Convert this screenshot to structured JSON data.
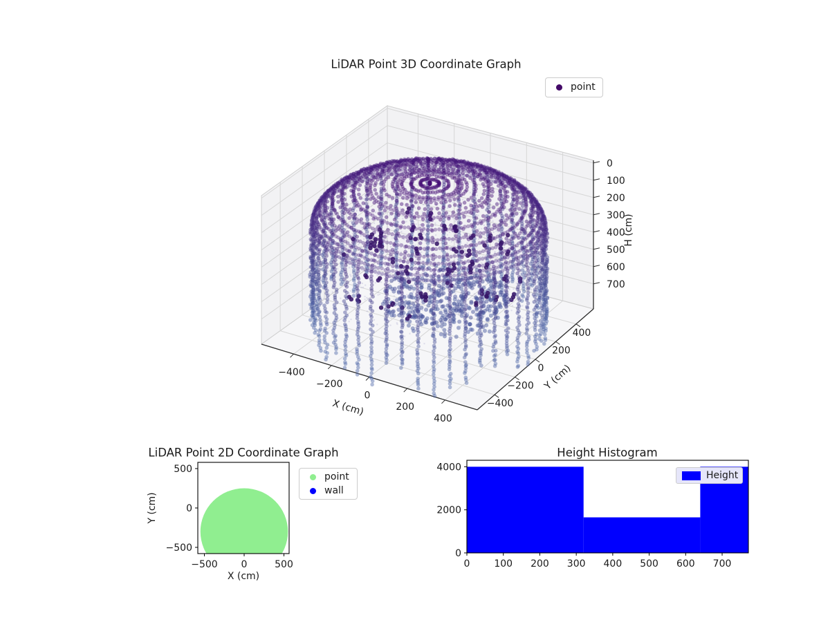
{
  "background": "#ffffff",
  "text_color": "#1a1a1a",
  "chart_data": [
    {
      "id": "lidar-3d",
      "type": "scatter3d",
      "title": "LiDAR Point 3D Coordinate Graph",
      "xlabel": "X (cm)",
      "ylabel": "Y (cm)",
      "zlabel": "H (cm)",
      "xtick_values": [
        -400,
        -200,
        0,
        200,
        400
      ],
      "xtick_labels": [
        "−400",
        "−200",
        "0",
        "200",
        "400"
      ],
      "ytick_values": [
        -400,
        -200,
        0,
        200,
        400
      ],
      "ytick_labels": [
        "−400",
        "−200",
        "0",
        "200",
        "400"
      ],
      "ztick_values": [
        0,
        100,
        200,
        300,
        400,
        500,
        600,
        700
      ],
      "ztick_labels": [
        "0",
        "100",
        "200",
        "300",
        "400",
        "500",
        "600",
        "700"
      ],
      "xlim": [
        -570,
        570
      ],
      "ylim": [
        -570,
        570
      ],
      "zlim": [
        -15,
        845
      ],
      "grid": true,
      "legend": [
        {
          "label": "point",
          "color": "#440a68"
        }
      ],
      "pane_color": "#f2f2f4",
      "grid_color": "#d6d6d6",
      "point_cloud": {
        "seed": 11,
        "columns": 46,
        "points_per_column": 58,
        "wall_radius_cm": 550,
        "dome_height_cm": 260,
        "wall_bottom_cm": 800,
        "dot_radius_px": 2.8,
        "alpha": 0.45,
        "colormap_stops": [
          "#450d76",
          "#46408d",
          "#5069a8"
        ],
        "dome_ring_step_cm": 26,
        "interior_dark": {
          "runs": 60,
          "color": "#351566",
          "alpha": 0.88,
          "h_min": 320,
          "h_max": 580,
          "dot_radius_px": 3.2
        },
        "floor_patch": {
          "count": 420,
          "radius_cm": 300,
          "center_x_cm": 90,
          "h_center_cm": 640,
          "h_spread_cm": 70,
          "alpha": 0.5
        },
        "haze": {
          "count": 900,
          "alpha": 0.3,
          "color": "#aaa6ce",
          "h_min": 250,
          "h_max": 650,
          "dot_radius_px": 1.2
        }
      }
    },
    {
      "id": "lidar-2d",
      "type": "scatter",
      "title": "LiDAR Point 2D Coordinate Graph",
      "xlabel": "X (cm)",
      "ylabel": "Y (cm)",
      "xtick_values": [
        -500,
        0,
        500
      ],
      "xtick_labels": [
        "−500",
        "0",
        "500"
      ],
      "ytick_values": [
        500,
        0,
        -500
      ],
      "ytick_labels": [
        "500",
        "0",
        "−500"
      ],
      "xlim": [
        -583,
        566
      ],
      "ylim": [
        -579,
        579
      ],
      "legend": [
        {
          "label": "point",
          "color": "#90ee90"
        },
        {
          "label": "wall",
          "color": "#0000ff"
        }
      ],
      "point_region": {
        "shape": "disc",
        "center_cm": [
          0,
          -300
        ],
        "radius_cm": 550,
        "color": "#90ee90"
      }
    },
    {
      "id": "height-histogram",
      "type": "bar",
      "title": "Height Histogram",
      "xtick_values": [
        0,
        100,
        200,
        300,
        400,
        500,
        600,
        700
      ],
      "xtick_labels": [
        "0",
        "100",
        "200",
        "300",
        "400",
        "500",
        "600",
        "700"
      ],
      "ytick_values": [
        0,
        2000,
        4000
      ],
      "ytick_labels": [
        "0",
        "2000",
        "4000"
      ],
      "xlim": [
        0,
        772
      ],
      "ylim": [
        0,
        4300
      ],
      "bar_color": "#0000ff",
      "legend": [
        {
          "label": "Height",
          "color": "#0000ff"
        }
      ],
      "legend_bg": "#e6e6fa",
      "bars": [
        {
          "x_from": 0,
          "x_to": 320,
          "value": 4000
        },
        {
          "x_from": 320,
          "x_to": 640,
          "value": 1650
        },
        {
          "x_from": 640,
          "x_to": 772,
          "value": 4000
        }
      ]
    }
  ]
}
